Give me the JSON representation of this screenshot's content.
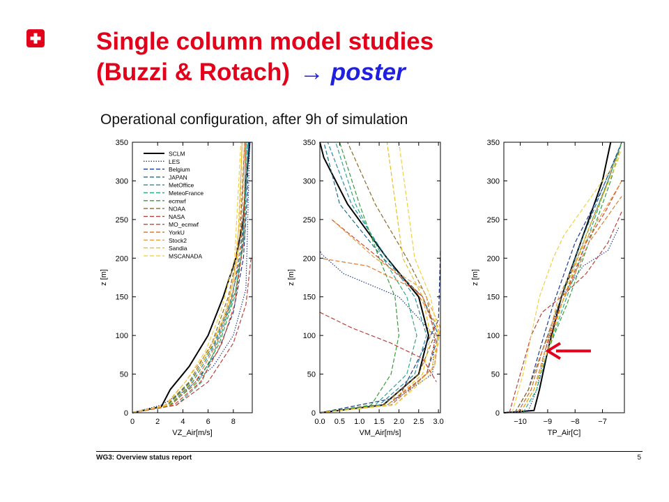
{
  "slide": {
    "title_line1": "Single column model studies",
    "title_line2": "(Buzzi & Rotach)",
    "title_arrow": "→",
    "title_poster": "poster",
    "subtitle": "Operational configuration, after 9h of simulation",
    "footer_left": "WG3: Overview status report",
    "page_number": "5",
    "colors": {
      "title": "#e2001a",
      "accent_text": "#1f1fe0",
      "annotation_arrow": "#e2001a"
    }
  },
  "chart_data": [
    {
      "type": "line",
      "xlabel": "VZ_Air[m/s]",
      "ylabel": "z [m]",
      "xlim": [
        0,
        9.5
      ],
      "ylim": [
        0,
        350
      ],
      "xticks": [
        0,
        2,
        4,
        6,
        8
      ],
      "xtick_labels": [
        "0",
        "2",
        "4",
        "6",
        "8"
      ],
      "yticks": [
        0,
        50,
        100,
        150,
        200,
        250,
        300,
        350
      ],
      "legend_position": "top-left",
      "series": [
        {
          "name": "SCLM",
          "color": "#000000",
          "style": "solid",
          "x": [
            0,
            2.3,
            3.0,
            4.5,
            6.0,
            7.2,
            8.2,
            8.8,
            9.0,
            9.2,
            9.3
          ],
          "y": [
            0,
            8,
            30,
            60,
            100,
            150,
            200,
            250,
            300,
            330,
            350
          ]
        },
        {
          "name": "LES",
          "color": "#1f3a8c",
          "style": "dotted",
          "x": [
            0,
            2.3,
            4.3,
            6.4,
            8.0,
            9.0,
            9.3
          ],
          "y": [
            0,
            10,
            30,
            60,
            100,
            160,
            350
          ]
        },
        {
          "name": "Belgium",
          "color": "#1f3a8c",
          "style": "dashed",
          "x": [
            0,
            3.2,
            5.0,
            6.8,
            8.0,
            8.8,
            9.1,
            9.2
          ],
          "y": [
            0,
            12,
            40,
            80,
            130,
            200,
            280,
            350
          ]
        },
        {
          "name": "JAPAN",
          "color": "#1d6f86",
          "style": "dashed",
          "x": [
            0,
            2.8,
            4.6,
            6.5,
            7.7,
            8.6,
            9.0,
            9.2
          ],
          "y": [
            0,
            10,
            40,
            90,
            140,
            200,
            280,
            350
          ]
        },
        {
          "name": "MetOffice",
          "color": "#2a8aa6",
          "style": "dashed",
          "x": [
            0,
            3.0,
            4.8,
            6.6,
            7.8,
            8.6,
            9.0,
            9.1
          ],
          "y": [
            0,
            10,
            40,
            90,
            140,
            210,
            290,
            350
          ]
        },
        {
          "name": "MeteoFrance",
          "color": "#2aa88a",
          "style": "dashed",
          "x": [
            0,
            3.5,
            5.5,
            7.0,
            8.2,
            8.9,
            9.1
          ],
          "y": [
            0,
            10,
            40,
            100,
            160,
            230,
            350
          ]
        },
        {
          "name": "ecmwf",
          "color": "#3a9a3a",
          "style": "dashed",
          "x": [
            0,
            3.0,
            5.2,
            6.9,
            8.1,
            8.8,
            9.0
          ],
          "y": [
            0,
            10,
            40,
            90,
            150,
            220,
            350
          ]
        },
        {
          "name": "NOAA",
          "color": "#8a6a2a",
          "style": "dashed",
          "x": [
            0,
            2.7,
            4.5,
            6.3,
            7.6,
            8.5,
            8.9
          ],
          "y": [
            0,
            10,
            40,
            90,
            150,
            220,
            350
          ]
        },
        {
          "name": "NASA",
          "color": "#b8403a",
          "style": "dashed",
          "x": [
            0,
            3.5,
            6.0,
            8.0,
            9.0,
            9.4
          ],
          "y": [
            0,
            10,
            40,
            90,
            140,
            200
          ]
        },
        {
          "name": "MO_ecmwf",
          "color": "#d4442a",
          "style": "dashed",
          "x": [
            0,
            3.3,
            5.4,
            7.1,
            8.1,
            8.8,
            9.0
          ],
          "y": [
            0,
            10,
            40,
            90,
            140,
            220,
            350
          ]
        },
        {
          "name": "YorkU",
          "color": "#e07830",
          "style": "dashed",
          "x": [
            0,
            3.1,
            5.0,
            6.7,
            7.9,
            8.6,
            8.9
          ],
          "y": [
            0,
            10,
            40,
            90,
            150,
            220,
            350
          ]
        },
        {
          "name": "Stock2",
          "color": "#e8a040",
          "style": "dashed",
          "x": [
            0,
            2.6,
            4.2,
            6.0,
            7.2,
            8.0,
            8.5,
            8.7
          ],
          "y": [
            0,
            10,
            40,
            80,
            120,
            170,
            250,
            350
          ]
        },
        {
          "name": "Sandia",
          "color": "#e6c020",
          "style": "dashed",
          "x": [
            0,
            2.9,
            4.7,
            6.4,
            7.6,
            8.3,
            8.7
          ],
          "y": [
            0,
            10,
            40,
            90,
            140,
            200,
            350
          ]
        },
        {
          "name": "MSCANADA",
          "color": "#f0d040",
          "style": "dashed",
          "x": [
            0,
            2.7,
            4.2,
            5.8,
            7.0,
            8.1,
            8.6
          ],
          "y": [
            0,
            10,
            40,
            80,
            130,
            200,
            350
          ]
        }
      ]
    },
    {
      "type": "line",
      "xlabel": "VM_Air[m/s]",
      "ylabel": "z [m]",
      "xlim": [
        0,
        3.05
      ],
      "ylim": [
        0,
        350
      ],
      "xticks": [
        0,
        0.5,
        1.0,
        1.5,
        2.0,
        2.5,
        3.0
      ],
      "xtick_labels": [
        "0.0",
        "0.5",
        "1.0",
        "1.5",
        "2.0",
        "2.5",
        "3.0"
      ],
      "yticks": [
        0,
        50,
        100,
        150,
        200,
        250,
        300,
        350
      ],
      "series": [
        {
          "name": "SCLM",
          "color": "#000000",
          "style": "solid",
          "x": [
            0,
            1.6,
            2.5,
            2.75,
            2.5,
            1.7,
            0.7,
            0.1,
            0.0
          ],
          "y": [
            0,
            10,
            50,
            100,
            150,
            200,
            270,
            330,
            350
          ]
        },
        {
          "name": "LES",
          "color": "#1f3a8c",
          "style": "dotted",
          "x": [
            0,
            1.7,
            2.85,
            2.9,
            2.0,
            0.6,
            0.05,
            0.0
          ],
          "y": [
            0,
            10,
            50,
            100,
            150,
            180,
            205,
            210
          ]
        },
        {
          "name": "Belgium",
          "color": "#1f3a8c",
          "style": "dashed",
          "x": [
            0,
            2.0,
            3.0,
            3.05
          ],
          "y": [
            0,
            20,
            120,
            210
          ]
        },
        {
          "name": "JAPAN",
          "color": "#1d6f86",
          "style": "dashed",
          "x": [
            0,
            1.8,
            2.7,
            3.0,
            2.6,
            1.6,
            0.5,
            0.1
          ],
          "y": [
            0,
            10,
            50,
            100,
            150,
            200,
            270,
            350
          ]
        },
        {
          "name": "MetOffice",
          "color": "#2a8aa6",
          "style": "dashed",
          "x": [
            0,
            1.5,
            2.4,
            2.7,
            2.4,
            1.7,
            0.8,
            0.2
          ],
          "y": [
            0,
            10,
            50,
            100,
            150,
            200,
            270,
            350
          ]
        },
        {
          "name": "MeteoFrance",
          "color": "#2aa88a",
          "style": "dashed",
          "x": [
            0,
            1.4,
            2.2,
            2.45,
            2.2,
            1.6,
            0.9,
            0.4
          ],
          "y": [
            0,
            10,
            50,
            100,
            150,
            200,
            270,
            350
          ]
        },
        {
          "name": "ecmwf",
          "color": "#3a9a3a",
          "style": "dashed",
          "x": [
            0,
            1.3,
            1.8,
            2.0,
            1.9,
            1.5,
            1.0,
            0.5
          ],
          "y": [
            0,
            10,
            50,
            100,
            150,
            200,
            270,
            350
          ]
        },
        {
          "name": "NOAA",
          "color": "#8a6a2a",
          "style": "dashed",
          "x": [
            0,
            1.6,
            2.5,
            2.9,
            2.7,
            2.2,
            1.4,
            0.7
          ],
          "y": [
            0,
            10,
            50,
            100,
            150,
            200,
            270,
            350
          ]
        },
        {
          "name": "NASA",
          "color": "#b8403a",
          "style": "dashed",
          "x": [
            0,
            0.8,
            1.8,
            2.6,
            2.95
          ],
          "y": [
            130,
            110,
            90,
            70,
            40
          ]
        },
        {
          "name": "MO_ecmwf",
          "color": "#d4442a",
          "style": "dashed",
          "x": [
            0,
            1.7,
            2.7,
            2.95,
            2.6,
            1.5,
            0.3
          ],
          "y": [
            0,
            10,
            50,
            100,
            150,
            200,
            250
          ]
        },
        {
          "name": "YorkU",
          "color": "#e07830",
          "style": "dashed",
          "x": [
            0,
            1.8,
            2.9,
            3.0,
            2.4,
            1.2,
            0.0
          ],
          "y": [
            0,
            10,
            60,
            110,
            160,
            190,
            200
          ]
        },
        {
          "name": "Stock2",
          "color": "#e8a040",
          "style": "dashed",
          "x": [
            0,
            1.9,
            2.9,
            3.05,
            2.6,
            1.4,
            0.3
          ],
          "y": [
            0,
            10,
            60,
            110,
            160,
            200,
            250
          ]
        },
        {
          "name": "Sandia",
          "color": "#e6c020",
          "style": "dashed",
          "x": [
            0,
            1.7,
            2.6,
            2.8,
            2.6,
            2.1,
            1.7
          ],
          "y": [
            0,
            10,
            50,
            100,
            150,
            200,
            350
          ]
        },
        {
          "name": "MSCANADA",
          "color": "#f0d040",
          "style": "dashed",
          "x": [
            0,
            1.9,
            2.8,
            3.0,
            2.8,
            2.4,
            2.0
          ],
          "y": [
            0,
            10,
            50,
            100,
            150,
            200,
            350
          ]
        }
      ]
    },
    {
      "type": "line",
      "xlabel": "TP_Air[C]",
      "ylabel": "z [m]",
      "xlim": [
        -10.6,
        -6.2
      ],
      "ylim": [
        0,
        350
      ],
      "xticks": [
        -10,
        -9,
        -8,
        -7
      ],
      "xtick_labels": [
        "−10",
        "−9",
        "−8",
        "−7"
      ],
      "yticks": [
        0,
        50,
        100,
        150,
        200,
        250,
        300,
        350
      ],
      "annotation": {
        "type": "arrow",
        "direction": "left",
        "color": "#e2001a",
        "at": {
          "x": -9.0,
          "y": 80
        }
      },
      "series": [
        {
          "name": "SCLM",
          "color": "#000000",
          "style": "solid",
          "x": [
            -10.6,
            -9.5,
            -9.3,
            -9.0,
            -8.5,
            -8.0,
            -7.5,
            -7.0,
            -6.7
          ],
          "y": [
            0,
            3,
            30,
            80,
            150,
            200,
            250,
            300,
            350
          ]
        },
        {
          "name": "LES",
          "color": "#1f3a8c",
          "style": "dotted",
          "x": [
            -10.6,
            -9.7,
            -9.4,
            -9.1,
            -8.5,
            -7.7,
            -6.8,
            -6.4
          ],
          "y": [
            0,
            3,
            30,
            80,
            150,
            190,
            210,
            240
          ]
        },
        {
          "name": "Belgium",
          "color": "#1f3a8c",
          "style": "dashed",
          "x": [
            -10.2,
            -9.7,
            -9.3,
            -8.8,
            -8.0,
            -7.0,
            -6.3
          ],
          "y": [
            0,
            30,
            80,
            140,
            220,
            290,
            350
          ]
        },
        {
          "name": "JAPAN",
          "color": "#1d6f86",
          "style": "dashed",
          "x": [
            -10.1,
            -9.6,
            -9.2,
            -8.6,
            -7.8,
            -7.0,
            -6.4
          ],
          "y": [
            0,
            30,
            80,
            140,
            220,
            290,
            340
          ]
        },
        {
          "name": "MetOffice",
          "color": "#2a8aa6",
          "style": "dashed",
          "x": [
            -10.0,
            -9.5,
            -9.1,
            -8.5,
            -7.6,
            -6.8,
            -6.3
          ],
          "y": [
            0,
            30,
            80,
            140,
            230,
            300,
            350
          ]
        },
        {
          "name": "MeteoFrance",
          "color": "#2aa88a",
          "style": "dashed",
          "x": [
            -9.9,
            -9.4,
            -9.0,
            -8.4,
            -7.5,
            -6.8,
            -6.3
          ],
          "y": [
            0,
            30,
            80,
            140,
            230,
            300,
            350
          ]
        },
        {
          "name": "ecmwf",
          "color": "#3a9a3a",
          "style": "dashed",
          "x": [
            -10.0,
            -9.5,
            -9.0,
            -8.3,
            -7.4,
            -6.7,
            -6.3
          ],
          "y": [
            0,
            30,
            80,
            140,
            230,
            300,
            350
          ]
        },
        {
          "name": "NOAA",
          "color": "#8a6a2a",
          "style": "dashed",
          "x": [
            -10.2,
            -9.7,
            -9.2,
            -8.6,
            -7.7,
            -6.9,
            -6.4
          ],
          "y": [
            0,
            30,
            80,
            140,
            220,
            290,
            340
          ]
        },
        {
          "name": "NASA",
          "color": "#b8403a",
          "style": "dashed",
          "x": [
            -10.4,
            -10.0,
            -9.6,
            -9.2,
            -8.5,
            -7.6,
            -6.8,
            -6.3
          ],
          "y": [
            0,
            50,
            100,
            130,
            150,
            180,
            220,
            260
          ]
        },
        {
          "name": "MO_ecmwf",
          "color": "#d4442a",
          "style": "dashed",
          "x": [
            -10.0,
            -9.5,
            -9.1,
            -8.5,
            -7.6,
            -6.9,
            -6.3
          ],
          "y": [
            0,
            30,
            80,
            140,
            220,
            260,
            300
          ]
        },
        {
          "name": "YorkU",
          "color": "#e07830",
          "style": "dashed",
          "x": [
            -10.1,
            -9.6,
            -9.2,
            -8.5,
            -7.5,
            -6.7,
            -6.3
          ],
          "y": [
            0,
            30,
            80,
            140,
            220,
            260,
            280
          ]
        },
        {
          "name": "Stock2",
          "color": "#e8a040",
          "style": "dashed",
          "x": [
            -10.0,
            -9.5,
            -9.1,
            -8.6,
            -7.5,
            -6.8,
            -6.3
          ],
          "y": [
            0,
            30,
            80,
            150,
            230,
            270,
            300
          ]
        },
        {
          "name": "Sandia",
          "color": "#e6c020",
          "style": "dashed",
          "x": [
            -10.0,
            -9.5,
            -9.0,
            -8.4,
            -7.6,
            -7.0,
            -6.4
          ],
          "y": [
            0,
            30,
            80,
            150,
            230,
            280,
            330
          ]
        },
        {
          "name": "MSCANADA",
          "color": "#f0d040",
          "style": "dashed",
          "x": [
            -10.3,
            -9.9,
            -9.6,
            -9.3,
            -8.8,
            -8.4,
            -7.8,
            -7.2,
            -6.6,
            -6.3
          ],
          "y": [
            0,
            50,
            100,
            150,
            200,
            230,
            260,
            290,
            320,
            340
          ]
        }
      ]
    }
  ]
}
